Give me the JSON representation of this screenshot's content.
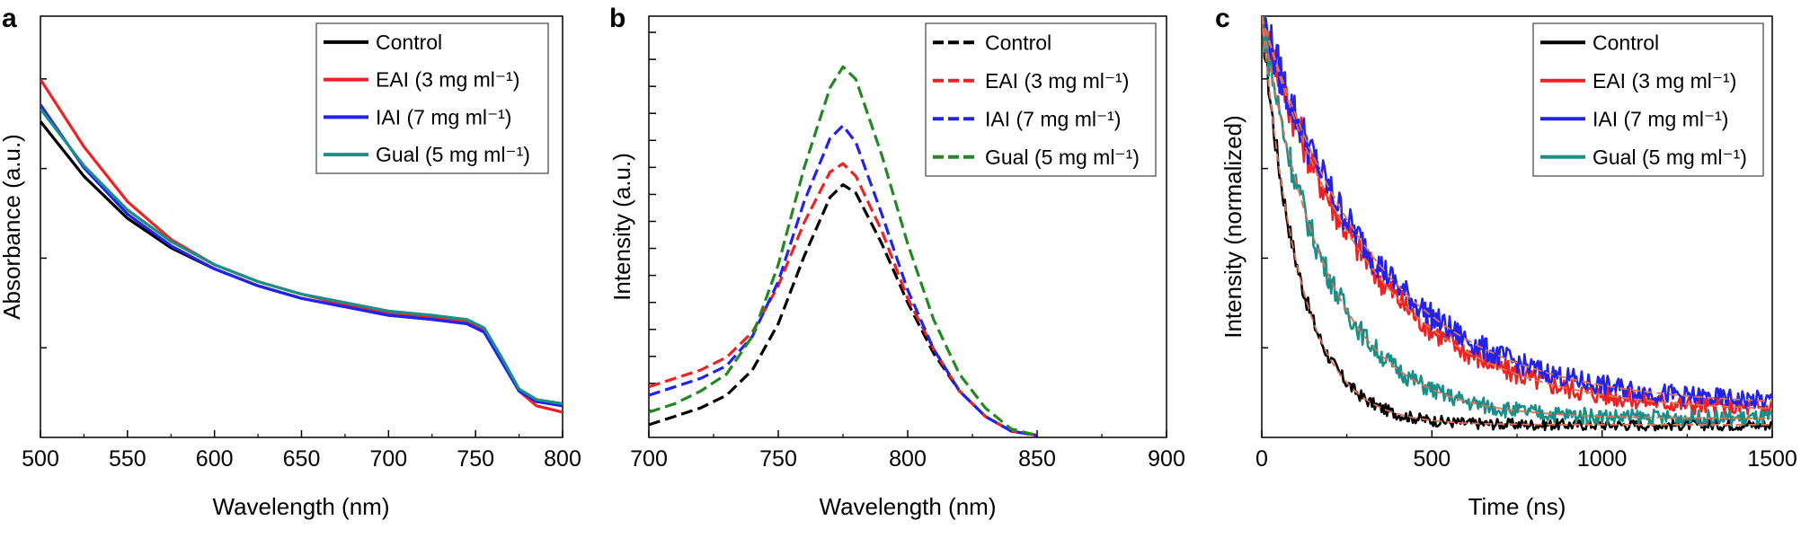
{
  "chart_data": [
    {
      "type": "line",
      "panel": "a",
      "xlabel": "Wavelength (nm)",
      "ylabel": "Absorbance (a.u.)",
      "xlim": [
        500,
        800
      ],
      "ylim": [
        0,
        1
      ],
      "xticks": [
        "500",
        "550",
        "600",
        "650",
        "700",
        "750",
        "800"
      ],
      "y_tick_labels_shown": false,
      "grid": false,
      "legend_position": "top-right",
      "series": [
        {
          "name": "Control",
          "legend_label": "Control",
          "color": "#000000",
          "dashed": false,
          "x": [
            500,
            525,
            550,
            575,
            600,
            625,
            650,
            675,
            700,
            725,
            745,
            755,
            765,
            775,
            785,
            800
          ],
          "y": [
            0.75,
            0.62,
            0.52,
            0.45,
            0.4,
            0.36,
            0.33,
            0.31,
            0.29,
            0.28,
            0.27,
            0.25,
            0.18,
            0.11,
            0.085,
            0.075
          ]
        },
        {
          "name": "EAI (3 mg ml-1)",
          "legend_label": "EAI (3 mg ml⁻¹)",
          "color": "#ee2222",
          "dashed": false,
          "x": [
            500,
            525,
            550,
            575,
            600,
            625,
            650,
            675,
            700,
            725,
            745,
            755,
            765,
            775,
            785,
            800
          ],
          "y": [
            0.85,
            0.69,
            0.56,
            0.47,
            0.41,
            0.37,
            0.34,
            0.315,
            0.295,
            0.285,
            0.275,
            0.255,
            0.185,
            0.11,
            0.075,
            0.06
          ]
        },
        {
          "name": "IAI (7 mg ml-1)",
          "legend_label": "IAI (7 mg ml⁻¹)",
          "color": "#2222ee",
          "dashed": false,
          "x": [
            500,
            525,
            550,
            575,
            600,
            625,
            650,
            675,
            700,
            725,
            745,
            755,
            765,
            775,
            785,
            800
          ],
          "y": [
            0.79,
            0.64,
            0.53,
            0.455,
            0.4,
            0.36,
            0.33,
            0.31,
            0.29,
            0.28,
            0.27,
            0.25,
            0.18,
            0.11,
            0.085,
            0.075
          ]
        },
        {
          "name": "Gual (5 mg ml-1)",
          "legend_label": "Gual (5 mg ml⁻¹)",
          "color": "#1a8f8a",
          "dashed": false,
          "x": [
            500,
            525,
            550,
            575,
            600,
            625,
            650,
            675,
            700,
            725,
            745,
            755,
            765,
            775,
            785,
            800
          ],
          "y": [
            0.78,
            0.645,
            0.54,
            0.465,
            0.41,
            0.37,
            0.34,
            0.32,
            0.3,
            0.29,
            0.28,
            0.26,
            0.19,
            0.115,
            0.09,
            0.08
          ]
        }
      ]
    },
    {
      "type": "line",
      "panel": "b",
      "xlabel": "Wavelength (nm)",
      "ylabel": "Intensity (a.u.)",
      "xlim": [
        700,
        900
      ],
      "ylim": [
        0,
        1
      ],
      "xticks": [
        "700",
        "750",
        "800",
        "850",
        "900"
      ],
      "y_tick_labels_shown": false,
      "grid": false,
      "legend_position": "top-right",
      "series": [
        {
          "name": "Control",
          "legend_label": "Control",
          "color": "#000000",
          "dashed": true,
          "x": [
            700,
            710,
            720,
            730,
            740,
            750,
            760,
            770,
            775,
            780,
            790,
            800,
            810,
            820,
            830,
            840,
            850
          ],
          "y": [
            0.03,
            0.05,
            0.07,
            0.1,
            0.16,
            0.27,
            0.43,
            0.57,
            0.6,
            0.58,
            0.46,
            0.32,
            0.2,
            0.11,
            0.05,
            0.015,
            0.005
          ]
        },
        {
          "name": "EAI (3 mg ml-1)",
          "legend_label": "EAI (3 mg ml⁻¹)",
          "color": "#ee2222",
          "dashed": true,
          "x": [
            700,
            710,
            720,
            730,
            740,
            750,
            760,
            770,
            775,
            780,
            790,
            800,
            810,
            820,
            830,
            840,
            850
          ],
          "y": [
            0.12,
            0.14,
            0.16,
            0.19,
            0.25,
            0.36,
            0.51,
            0.63,
            0.65,
            0.62,
            0.49,
            0.33,
            0.21,
            0.11,
            0.05,
            0.015,
            0.005
          ]
        },
        {
          "name": "IAI (7 mg ml-1)",
          "legend_label": "IAI (7 mg ml⁻¹)",
          "color": "#2222ee",
          "dashed": true,
          "x": [
            700,
            710,
            720,
            730,
            740,
            750,
            760,
            770,
            775,
            780,
            790,
            800,
            810,
            820,
            830,
            840,
            850
          ],
          "y": [
            0.1,
            0.12,
            0.14,
            0.17,
            0.24,
            0.37,
            0.56,
            0.71,
            0.74,
            0.7,
            0.53,
            0.35,
            0.21,
            0.11,
            0.05,
            0.015,
            0.005
          ]
        },
        {
          "name": "Gual (5 mg ml-1)",
          "legend_label": "Gual (5 mg ml⁻¹)",
          "color": "#228822",
          "dashed": true,
          "x": [
            700,
            710,
            720,
            730,
            740,
            750,
            760,
            770,
            775,
            780,
            790,
            800,
            810,
            820,
            830,
            840,
            850
          ],
          "y": [
            0.06,
            0.08,
            0.11,
            0.15,
            0.24,
            0.41,
            0.64,
            0.83,
            0.88,
            0.85,
            0.67,
            0.46,
            0.28,
            0.15,
            0.07,
            0.02,
            0.005
          ]
        }
      ]
    },
    {
      "type": "line",
      "panel": "c",
      "xlabel": "Time (ns)",
      "ylabel": "Intensity (normalized)",
      "xlim": [
        0,
        1500
      ],
      "ylim": [
        0,
        1
      ],
      "xticks": [
        "0",
        "500",
        "1000",
        "1500"
      ],
      "y_tick_labels_shown": false,
      "grid": false,
      "legend_position": "top-right",
      "noisy_decay_with_dashed_fit": true,
      "series": [
        {
          "name": "Control",
          "legend_label": "Control",
          "color": "#000000",
          "fit_color": "#e07050",
          "tau_ns": 110,
          "floor": 0.03,
          "noise": 0.025
        },
        {
          "name": "EAI (3 mg ml-1)",
          "legend_label": "EAI (3 mg ml⁻¹)",
          "color": "#ee2222",
          "fit_color": "#e07050",
          "tau_ns": 320,
          "floor": 0.06,
          "noise": 0.04
        },
        {
          "name": "IAI (7 mg ml-1)",
          "legend_label": "IAI (7 mg ml⁻¹)",
          "color": "#2222ee",
          "fit_color": "#e07050",
          "tau_ns": 340,
          "floor": 0.075,
          "noise": 0.04
        },
        {
          "name": "Gual (5 mg ml-1)",
          "legend_label": "Gual (5 mg ml⁻¹)",
          "color": "#1a8f8a",
          "fit_color": "#e07050",
          "tau_ns": 190,
          "floor": 0.045,
          "noise": 0.035
        }
      ]
    }
  ]
}
